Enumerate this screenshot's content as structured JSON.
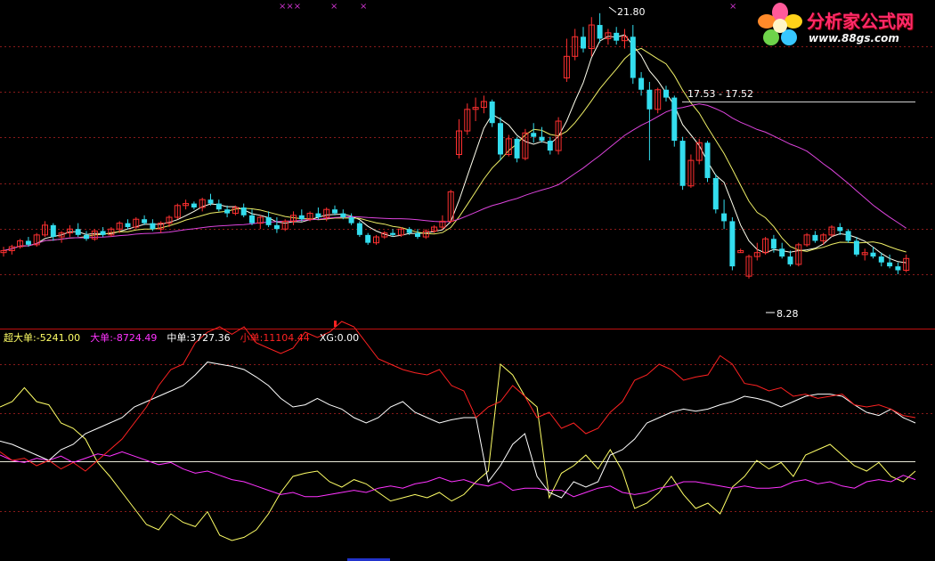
{
  "chart_data": {
    "type": "candlestick",
    "price_panel": {
      "high_marker": "21.80",
      "low_marker": "8.28",
      "level_label": "17.53 - 17.52",
      "price_range": [
        6.5,
        22.2
      ],
      "candles": [
        [
          9.6,
          9.9,
          9.4,
          9.7
        ],
        [
          9.7,
          10.0,
          9.5,
          9.9
        ],
        [
          9.9,
          10.3,
          9.8,
          10.2
        ],
        [
          10.2,
          10.4,
          9.9,
          10.0
        ],
        [
          10.0,
          10.6,
          9.9,
          10.5
        ],
        [
          10.5,
          11.2,
          10.4,
          11.0
        ],
        [
          11.0,
          11.1,
          10.2,
          10.4
        ],
        [
          10.4,
          10.7,
          10.1,
          10.6
        ],
        [
          10.6,
          11.0,
          10.4,
          10.8
        ],
        [
          10.8,
          11.1,
          10.4,
          10.5
        ],
        [
          10.5,
          10.7,
          10.2,
          10.3
        ],
        [
          10.3,
          10.8,
          10.2,
          10.7
        ],
        [
          10.7,
          10.9,
          10.4,
          10.5
        ],
        [
          10.5,
          10.9,
          10.4,
          10.8
        ],
        [
          10.8,
          11.2,
          10.6,
          11.1
        ],
        [
          11.1,
          11.3,
          10.8,
          10.9
        ],
        [
          10.9,
          11.4,
          10.8,
          11.3
        ],
        [
          11.3,
          11.5,
          11.0,
          11.1
        ],
        [
          11.1,
          11.3,
          10.7,
          10.8
        ],
        [
          10.8,
          11.2,
          10.6,
          11.1
        ],
        [
          11.1,
          11.5,
          10.9,
          11.4
        ],
        [
          11.4,
          12.1,
          11.3,
          12.0
        ],
        [
          12.0,
          12.3,
          11.8,
          12.1
        ],
        [
          12.1,
          12.2,
          11.8,
          11.9
        ],
        [
          11.9,
          12.4,
          11.7,
          12.3
        ],
        [
          12.3,
          12.6,
          12.0,
          12.1
        ],
        [
          12.1,
          12.3,
          11.7,
          11.8
        ],
        [
          11.8,
          12.0,
          11.4,
          11.6
        ],
        [
          11.6,
          12.0,
          11.5,
          11.9
        ],
        [
          11.9,
          12.1,
          11.4,
          11.5
        ],
        [
          11.5,
          11.8,
          11.0,
          11.1
        ],
        [
          11.1,
          11.5,
          10.8,
          11.4
        ],
        [
          11.4,
          11.7,
          10.9,
          11.0
        ],
        [
          11.0,
          11.4,
          10.6,
          10.8
        ],
        [
          10.8,
          11.3,
          10.7,
          11.2
        ],
        [
          11.2,
          11.7,
          11.0,
          11.5
        ],
        [
          11.5,
          11.8,
          11.2,
          11.3
        ],
        [
          11.3,
          11.7,
          11.2,
          11.6
        ],
        [
          11.6,
          11.9,
          11.3,
          11.4
        ],
        [
          11.4,
          11.9,
          11.2,
          11.8
        ],
        [
          11.8,
          12.0,
          11.5,
          11.6
        ],
        [
          11.6,
          11.8,
          11.3,
          11.4
        ],
        [
          11.4,
          11.6,
          11.0,
          11.1
        ],
        [
          11.1,
          11.2,
          10.4,
          10.5
        ],
        [
          10.5,
          10.6,
          10.0,
          10.1
        ],
        [
          10.1,
          10.5,
          10.0,
          10.4
        ],
        [
          10.4,
          10.7,
          10.3,
          10.6
        ],
        [
          10.6,
          10.8,
          10.4,
          10.5
        ],
        [
          10.5,
          10.9,
          10.4,
          10.8
        ],
        [
          10.8,
          10.9,
          10.5,
          10.6
        ],
        [
          10.6,
          10.8,
          10.3,
          10.4
        ],
        [
          10.4,
          10.8,
          10.3,
          10.7
        ],
        [
          10.7,
          11.0,
          10.6,
          10.9
        ],
        [
          10.9,
          11.5,
          10.8,
          11.2
        ],
        [
          11.2,
          12.8,
          11.1,
          12.7
        ],
        [
          14.6,
          16.4,
          14.4,
          15.8
        ],
        [
          15.8,
          17.2,
          15.6,
          16.9
        ],
        [
          16.9,
          17.5,
          16.3,
          17.0
        ],
        [
          17.0,
          17.6,
          16.7,
          17.3
        ],
        [
          17.3,
          17.4,
          16.0,
          16.2
        ],
        [
          16.2,
          16.5,
          14.3,
          14.6
        ],
        [
          14.6,
          15.6,
          14.5,
          15.4
        ],
        [
          15.4,
          15.5,
          14.2,
          14.4
        ],
        [
          14.4,
          15.9,
          14.3,
          15.7
        ],
        [
          15.7,
          16.2,
          15.2,
          15.5
        ],
        [
          15.5,
          16.0,
          15.2,
          15.3
        ],
        [
          15.3,
          15.5,
          14.6,
          14.8
        ],
        [
          14.8,
          16.5,
          14.6,
          16.3
        ],
        [
          18.5,
          20.5,
          18.3,
          19.6
        ],
        [
          19.6,
          21.0,
          19.4,
          20.6
        ],
        [
          20.6,
          21.1,
          19.8,
          20.0
        ],
        [
          20.0,
          21.6,
          19.6,
          21.2
        ],
        [
          21.2,
          21.8,
          20.3,
          20.5
        ],
        [
          20.5,
          21.0,
          20.2,
          20.8
        ],
        [
          20.8,
          21.1,
          20.2,
          20.4
        ],
        [
          20.4,
          21.0,
          20.0,
          20.6
        ],
        [
          20.6,
          21.2,
          18.2,
          18.5
        ],
        [
          18.5,
          18.8,
          17.6,
          17.9
        ],
        [
          17.9,
          18.3,
          14.3,
          16.9
        ],
        [
          16.9,
          18.0,
          16.7,
          17.9
        ],
        [
          17.9,
          18.1,
          17.3,
          17.5
        ],
        [
          17.5,
          17.6,
          15.0,
          15.3
        ],
        [
          15.3,
          15.5,
          12.8,
          13.0
        ],
        [
          13.0,
          14.6,
          12.9,
          14.3
        ],
        [
          14.3,
          15.4,
          14.1,
          15.2
        ],
        [
          15.2,
          15.3,
          13.2,
          13.4
        ],
        [
          13.4,
          13.6,
          11.6,
          11.8
        ],
        [
          11.6,
          12.3,
          10.8,
          11.2
        ],
        [
          11.2,
          11.4,
          8.7,
          8.9
        ],
        [
          9.6,
          9.8,
          9.6,
          9.7
        ],
        [
          8.4,
          9.5,
          8.28,
          9.4
        ],
        [
          9.4,
          10.1,
          9.2,
          9.6
        ],
        [
          9.6,
          10.4,
          9.5,
          10.3
        ],
        [
          10.3,
          10.5,
          9.6,
          9.8
        ],
        [
          9.8,
          10.1,
          9.3,
          9.4
        ],
        [
          9.4,
          9.7,
          8.9,
          9.0
        ],
        [
          9.0,
          10.1,
          8.9,
          10.0
        ],
        [
          10.0,
          10.6,
          9.9,
          10.5
        ],
        [
          10.5,
          10.7,
          10.1,
          10.2
        ],
        [
          10.2,
          10.6,
          10.0,
          10.5
        ],
        [
          10.5,
          11.0,
          10.4,
          10.9
        ],
        [
          10.9,
          11.1,
          10.5,
          10.7
        ],
        [
          10.7,
          10.8,
          10.1,
          10.2
        ],
        [
          10.2,
          10.4,
          9.4,
          9.5
        ],
        [
          9.5,
          9.8,
          9.2,
          9.6
        ],
        [
          9.6,
          9.9,
          9.3,
          9.4
        ],
        [
          9.4,
          9.6,
          8.9,
          9.1
        ],
        [
          9.1,
          9.5,
          8.8,
          8.9
        ],
        [
          8.9,
          9.1,
          8.5,
          8.7
        ],
        [
          8.7,
          9.5,
          8.6,
          9.3
        ]
      ]
    },
    "flow_panel": {
      "range": [
        -100,
        100
      ],
      "series": [
        {
          "name": "超大单",
          "label": "超大单",
          "value": "-5241.00",
          "color": "#ffff66",
          "values": [
            40,
            45,
            58,
            45,
            42,
            25,
            20,
            10,
            -12,
            -25,
            -40,
            -55,
            -70,
            -75,
            -60,
            -68,
            -72,
            -58,
            -80,
            -85,
            -82,
            -75,
            -60,
            -40,
            -25,
            -22,
            -20,
            -30,
            -35,
            -28,
            -32,
            -40,
            -48,
            -45,
            -42,
            -45,
            -40,
            -48,
            -42,
            -30,
            -20,
            80,
            70,
            50,
            40,
            -45,
            -22,
            -15,
            -5,
            -18,
            0,
            -20,
            -55,
            -50,
            -40,
            -25,
            -42,
            -55,
            -50,
            -60,
            -35,
            -25,
            -10,
            -18,
            -12,
            -25,
            -5,
            0,
            5,
            -5,
            -15,
            -20,
            -12,
            -25,
            -30,
            -20
          ]
        },
        {
          "name": "大单",
          "label": "大单",
          "value": "-8724.49",
          "color": "#ff33ff",
          "values": [
            -5,
            -10,
            -12,
            -8,
            -10,
            -6,
            -12,
            -8,
            -4,
            -6,
            -2,
            -6,
            -10,
            -14,
            -12,
            -18,
            -22,
            -20,
            -24,
            -28,
            -30,
            -34,
            -38,
            -42,
            -40,
            -44,
            -44,
            -42,
            -40,
            -38,
            -40,
            -36,
            -34,
            -36,
            -32,
            -30,
            -26,
            -30,
            -28,
            -32,
            -34,
            -30,
            -38,
            -36,
            -36,
            -38,
            -38,
            -44,
            -40,
            -36,
            -34,
            -40,
            -42,
            -40,
            -36,
            -34,
            -30,
            -30,
            -32,
            -34,
            -36,
            -34,
            -36,
            -36,
            -35,
            -30,
            -28,
            -32,
            -30,
            -34,
            -36,
            -30,
            -28,
            -30,
            -24,
            -28
          ]
        },
        {
          "name": "中单",
          "label": "中单",
          "value": "3727.36",
          "color": "#ffffff",
          "values": [
            8,
            5,
            0,
            -5,
            -10,
            0,
            5,
            15,
            20,
            25,
            30,
            40,
            45,
            50,
            55,
            60,
            70,
            82,
            80,
            78,
            75,
            68,
            60,
            48,
            40,
            42,
            48,
            42,
            38,
            30,
            25,
            30,
            40,
            45,
            35,
            30,
            25,
            28,
            30,
            30,
            -30,
            -15,
            5,
            15,
            -25,
            -40,
            -45,
            -30,
            -35,
            -30,
            -5,
            0,
            10,
            25,
            30,
            35,
            38,
            36,
            38,
            42,
            45,
            50,
            48,
            45,
            40,
            45,
            50,
            52,
            52,
            50,
            42,
            35,
            32,
            38,
            30,
            25
          ]
        },
        {
          "name": "小单",
          "label": "小单",
          "value": "11104.44",
          "color": "#ff2222",
          "values": [
            -2,
            -10,
            -8,
            -15,
            -10,
            -18,
            -12,
            -20,
            -10,
            0,
            10,
            25,
            40,
            60,
            75,
            80,
            100,
            110,
            115,
            108,
            115,
            100,
            95,
            90,
            95,
            110,
            105,
            110,
            120,
            115,
            100,
            85,
            80,
            75,
            72,
            70,
            75,
            60,
            55,
            30,
            40,
            45,
            60,
            50,
            30,
            35,
            20,
            25,
            15,
            20,
            35,
            45,
            65,
            70,
            80,
            75,
            65,
            68,
            70,
            88,
            80,
            62,
            60,
            55,
            58,
            50,
            52,
            48,
            50,
            52,
            42,
            40,
            42,
            38,
            32,
            30
          ]
        }
      ],
      "xg": {
        "label": "XG",
        "value": "0.00"
      }
    }
  },
  "logo": {
    "title": "分析家公式网",
    "url": "www.88gs.com"
  },
  "top_markers": {
    "symbol": "×",
    "triple": "×××"
  },
  "colors": {
    "up": "#ff3030",
    "down": "#33ddee",
    "ma_short": "#ffffee",
    "ma_mid": "#eeee66",
    "ma_long": "#dd44dd",
    "grid": "#881a1a",
    "separator": "#c01010"
  }
}
